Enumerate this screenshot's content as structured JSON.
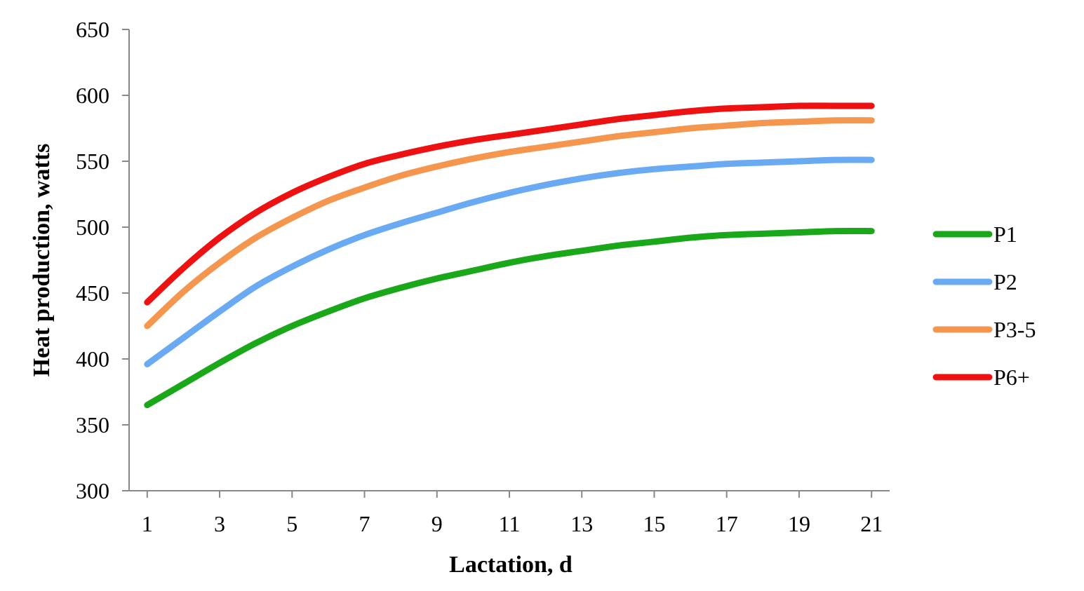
{
  "chart_data": {
    "type": "line",
    "title": "",
    "xlabel": "Lactation, d",
    "ylabel": "Heat production, watts",
    "x": [
      1,
      2,
      3,
      4,
      5,
      6,
      7,
      8,
      9,
      10,
      11,
      12,
      13,
      14,
      15,
      16,
      17,
      18,
      19,
      20,
      21
    ],
    "x_ticks": [
      1,
      3,
      5,
      7,
      9,
      11,
      13,
      15,
      17,
      19,
      21
    ],
    "xlim": [
      0.5,
      21.5
    ],
    "ylim": [
      300,
      650
    ],
    "y_ticks": [
      300,
      350,
      400,
      450,
      500,
      550,
      600,
      650
    ],
    "grid": false,
    "legend_position": "right",
    "series": [
      {
        "name": "P1",
        "color": "#1aa81a",
        "values": [
          365,
          381,
          397,
          412,
          425,
          436,
          446,
          454,
          461,
          467,
          473,
          478,
          482,
          486,
          489,
          492,
          494,
          495,
          496,
          497,
          497
        ]
      },
      {
        "name": "P2",
        "color": "#6aaaf2",
        "values": [
          396,
          416,
          436,
          455,
          470,
          483,
          494,
          503,
          511,
          519,
          526,
          532,
          537,
          541,
          544,
          546,
          548,
          549,
          550,
          551,
          551
        ]
      },
      {
        "name": "P3-5",
        "color": "#f5964e",
        "values": [
          425,
          451,
          473,
          492,
          507,
          520,
          530,
          539,
          546,
          552,
          557,
          561,
          565,
          569,
          572,
          575,
          577,
          579,
          580,
          581,
          581
        ]
      },
      {
        "name": "P6+",
        "color": "#ee1111",
        "values": [
          443,
          469,
          492,
          511,
          526,
          538,
          548,
          555,
          561,
          566,
          570,
          574,
          578,
          582,
          585,
          588,
          590,
          591,
          592,
          592,
          592
        ]
      }
    ]
  }
}
